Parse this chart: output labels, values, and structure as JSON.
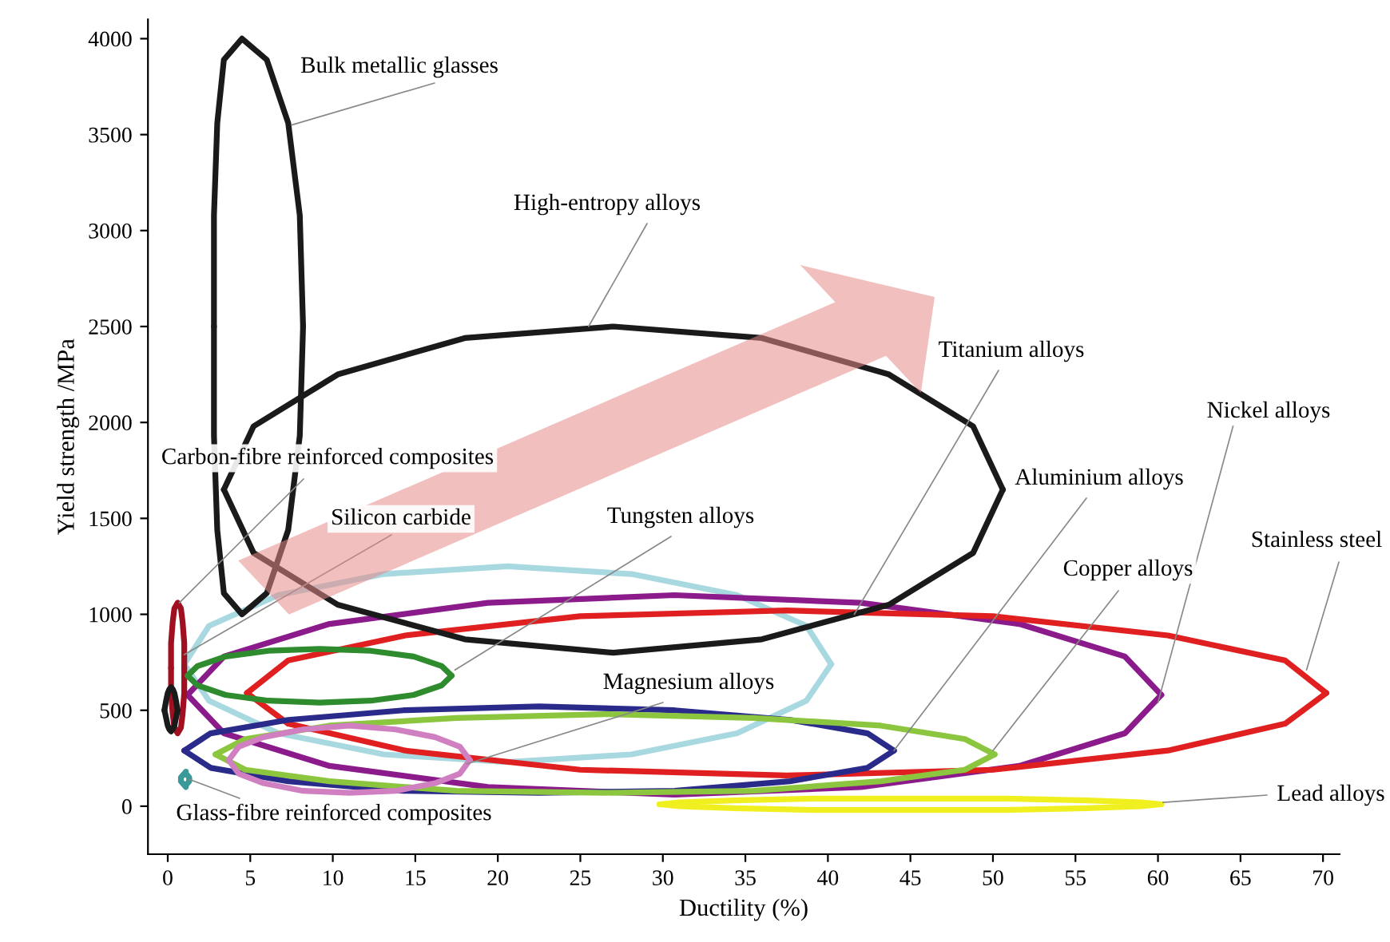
{
  "chart_data": {
    "type": "line",
    "xlabel": "Ductility (%)",
    "ylabel": "Yield strength /MPa",
    "xlim": [
      -1.2,
      71
    ],
    "ylim": [
      -250,
      4100
    ],
    "xticks": [
      0,
      5,
      10,
      15,
      20,
      25,
      30,
      35,
      40,
      45,
      50,
      55,
      60,
      65,
      70
    ],
    "yticks": [
      0,
      500,
      1000,
      1500,
      2000,
      2500,
      3000,
      3500,
      4000
    ],
    "grid": false,
    "legend": false,
    "marker": "none",
    "line_style": "solid",
    "series": [
      {
        "color": "#a8d8e0",
        "x": [
          40.2,
          38.7,
          34.5,
          28.1,
          20.6,
          13.1,
          6.7,
          2.5,
          1.0,
          2.5,
          6.7,
          13.1,
          20.6,
          28.1,
          34.5,
          38.7,
          40.2
        ],
        "values": [
          740,
          940,
          1100,
          1210,
          1250,
          1210,
          1100,
          940,
          740,
          550,
          380,
          270,
          230,
          270,
          380,
          550,
          740
        ]
      },
      {
        "color": "#8b1a8b",
        "x": [
          60.2,
          58.0,
          51.6,
          42.0,
          30.7,
          19.4,
          9.8,
          3.4,
          1.2,
          3.4,
          9.8,
          19.4,
          30.7,
          42.0,
          51.6,
          58.0,
          60.2
        ],
        "values": [
          580,
          780,
          950,
          1060,
          1100,
          1060,
          950,
          780,
          580,
          380,
          210,
          100,
          60,
          100,
          210,
          380,
          580
        ]
      },
      {
        "color": "#e02020",
        "x": [
          70.2,
          67.7,
          60.6,
          50.0,
          37.5,
          25.0,
          14.4,
          7.3,
          4.8,
          7.3,
          14.4,
          25.0,
          37.5,
          50.0,
          60.6,
          67.7,
          70.2
        ],
        "values": [
          590,
          760,
          890,
          990,
          1020,
          990,
          890,
          760,
          590,
          430,
          290,
          190,
          160,
          190,
          290,
          430,
          590
        ]
      },
      {
        "color": "#1a1a1a",
        "x": [
          50.6,
          48.8,
          43.7,
          36.0,
          27.0,
          18.0,
          10.3,
          5.2,
          3.4,
          5.2,
          10.3,
          18.0,
          27.0,
          36.0,
          43.7,
          48.8,
          50.6
        ],
        "values": [
          1650,
          1980,
          2250,
          2440,
          2500,
          2440,
          2250,
          1980,
          1650,
          1320,
          1050,
          870,
          800,
          870,
          1050,
          1320,
          1650
        ]
      },
      {
        "color": "#1a1a1a",
        "x": [
          8.2,
          8.0,
          7.3,
          6.0,
          4.5,
          3.4,
          3.0,
          2.8,
          2.8,
          2.8,
          3.0,
          3.4,
          4.5,
          6.0,
          7.3,
          8.0,
          8.2
        ],
        "values": [
          2500,
          3080,
          3560,
          3890,
          4000,
          3890,
          3560,
          3080,
          2500,
          1930,
          1440,
          1110,
          1000,
          1110,
          1440,
          1930,
          2500
        ]
      },
      {
        "color": "#a01020",
        "x": [
          1.0,
          1.0,
          0.9,
          0.8,
          0.6,
          0.4,
          0.3,
          0.2,
          0.2,
          0.2,
          0.3,
          0.4,
          0.6,
          0.8,
          0.9,
          1.0,
          1.0
        ],
        "values": [
          720,
          850,
          960,
          1030,
          1060,
          1030,
          960,
          850,
          720,
          590,
          480,
          410,
          380,
          410,
          480,
          590,
          720
        ]
      },
      {
        "color": "#1a1a1a",
        "x": [
          0.6,
          0.5,
          0.4,
          0.3,
          0.2,
          0.1,
          0,
          -0.1,
          -0.2,
          -0.1,
          0,
          0.1,
          0.2,
          0.3,
          0.4,
          0.5,
          0.6
        ],
        "values": [
          500,
          550,
          590,
          610,
          620,
          610,
          590,
          550,
          500,
          460,
          420,
          400,
          390,
          400,
          420,
          460,
          500
        ]
      },
      {
        "color": "#2e8b2e",
        "x": [
          17.2,
          16.6,
          14.9,
          12.3,
          9.2,
          6.1,
          3.5,
          1.8,
          1.2,
          1.8,
          3.5,
          6.1,
          9.2,
          12.3,
          14.9,
          16.6,
          17.2
        ],
        "values": [
          680,
          730,
          780,
          810,
          820,
          810,
          780,
          730,
          680,
          630,
          580,
          550,
          540,
          550,
          580,
          630,
          680
        ]
      },
      {
        "color": "#2a2a8a",
        "x": [
          44.0,
          42.4,
          37.7,
          30.7,
          22.5,
          14.3,
          7.3,
          2.6,
          1.0,
          2.6,
          7.3,
          14.3,
          22.5,
          30.7,
          37.7,
          42.4,
          44.0
        ],
        "values": [
          290,
          380,
          450,
          500,
          520,
          500,
          450,
          380,
          290,
          200,
          130,
          80,
          70,
          80,
          130,
          200,
          290
        ]
      },
      {
        "color": "#8cc63f",
        "x": [
          50.1,
          48.3,
          43.2,
          35.5,
          26.5,
          17.5,
          9.8,
          4.7,
          2.9,
          4.7,
          9.8,
          17.5,
          26.5,
          35.5,
          43.2,
          48.3,
          50.1
        ],
        "values": [
          270,
          350,
          420,
          460,
          480,
          460,
          420,
          350,
          270,
          190,
          130,
          80,
          70,
          80,
          130,
          190,
          270
        ]
      },
      {
        "color": "#d080c0",
        "x": [
          18.3,
          17.7,
          16.2,
          13.8,
          11.0,
          8.2,
          5.8,
          4.3,
          3.7,
          4.3,
          5.8,
          8.2,
          11.0,
          13.8,
          16.2,
          17.7,
          18.3
        ],
        "values": [
          240,
          310,
          360,
          400,
          420,
          400,
          360,
          310,
          240,
          170,
          120,
          80,
          70,
          80,
          120,
          170,
          240
        ]
      },
      {
        "color": "#3a9a9a",
        "x": [
          1.3,
          1.3,
          1.2,
          1.1,
          1.1,
          1.0,
          0.9,
          0.8,
          0.8,
          0.8,
          0.9,
          1.0,
          1.1,
          1.1,
          1.2,
          1.3,
          1.3
        ],
        "values": [
          140,
          150,
          160,
          170,
          180,
          170,
          160,
          150,
          140,
          130,
          120,
          110,
          100,
          110,
          120,
          130,
          140
        ]
      },
      {
        "color": "#f0f020",
        "x": [
          60.2,
          59.0,
          55.7,
          50.8,
          45.0,
          39.2,
          34.3,
          31.0,
          29.8,
          31.0,
          34.3,
          39.2,
          45.0,
          50.8,
          55.7,
          59.0,
          60.2
        ],
        "values": [
          10,
          20,
          30,
          40,
          40,
          40,
          30,
          20,
          10,
          0,
          -10,
          -20,
          -20,
          -20,
          -10,
          0,
          10
        ]
      }
    ],
    "annotations": [
      {
        "text": "Bulk metallic glasses",
        "x": 7.5,
        "y": 3550
      },
      {
        "text": "High-entropy alloys",
        "x": 25.5,
        "y": 2500
      },
      {
        "text": "Titanium alloys",
        "x": 41.6,
        "y": 1000
      },
      {
        "text": "Nickel alloys",
        "x": 60.0,
        "y": 540
      },
      {
        "text": "Carbon-fibre reinforced composites",
        "x": 0.7,
        "y": 1060
      },
      {
        "text": "Aluminium alloys",
        "x": 44.0,
        "y": 290
      },
      {
        "text": "Silicon carbide",
        "x": 1.0,
        "y": 790
      },
      {
        "text": "Tungsten alloys",
        "x": 17.4,
        "y": 710
      },
      {
        "text": "Stainless steel",
        "x": 69.0,
        "y": 710
      },
      {
        "text": "Copper alloys",
        "x": 50.0,
        "y": 290
      },
      {
        "text": "Magnesium alloys",
        "x": 18.1,
        "y": 220
      },
      {
        "text": "Lead alloys",
        "x": 60.3,
        "y": 20
      },
      {
        "text": "Glass-fibre reinforced composites",
        "x": 1.3,
        "y": 140
      }
    ]
  }
}
